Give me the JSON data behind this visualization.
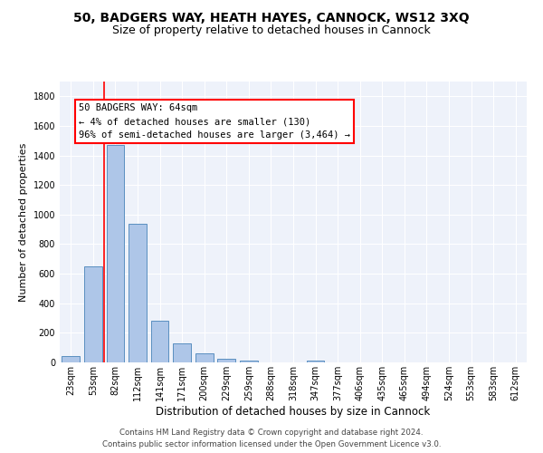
{
  "title1": "50, BADGERS WAY, HEATH HAYES, CANNOCK, WS12 3XQ",
  "title2": "Size of property relative to detached houses in Cannock",
  "xlabel": "Distribution of detached houses by size in Cannock",
  "ylabel": "Number of detached properties",
  "categories": [
    "23sqm",
    "53sqm",
    "82sqm",
    "112sqm",
    "141sqm",
    "171sqm",
    "200sqm",
    "229sqm",
    "259sqm",
    "288sqm",
    "318sqm",
    "347sqm",
    "377sqm",
    "406sqm",
    "435sqm",
    "465sqm",
    "494sqm",
    "524sqm",
    "553sqm",
    "583sqm",
    "612sqm"
  ],
  "values": [
    40,
    648,
    1474,
    938,
    285,
    128,
    63,
    22,
    14,
    0,
    0,
    14,
    0,
    0,
    0,
    0,
    0,
    0,
    0,
    0,
    0
  ],
  "bar_color": "#aec6e8",
  "bar_edgecolor": "#5a8fc0",
  "vline_x": 1.5,
  "vline_color": "red",
  "annotation_text": "50 BADGERS WAY: 64sqm\n← 4% of detached houses are smaller (130)\n96% of semi-detached houses are larger (3,464) →",
  "annotation_box_color": "white",
  "annotation_box_edgecolor": "red",
  "ylim": [
    0,
    1900
  ],
  "yticks": [
    0,
    200,
    400,
    600,
    800,
    1000,
    1200,
    1400,
    1600,
    1800
  ],
  "bg_color": "#eef2fa",
  "footnote1": "Contains HM Land Registry data © Crown copyright and database right 2024.",
  "footnote2": "Contains public sector information licensed under the Open Government Licence v3.0.",
  "title1_fontsize": 10,
  "title2_fontsize": 9,
  "xlabel_fontsize": 8.5,
  "ylabel_fontsize": 8,
  "tick_fontsize": 7,
  "annot_fontsize": 7.5
}
